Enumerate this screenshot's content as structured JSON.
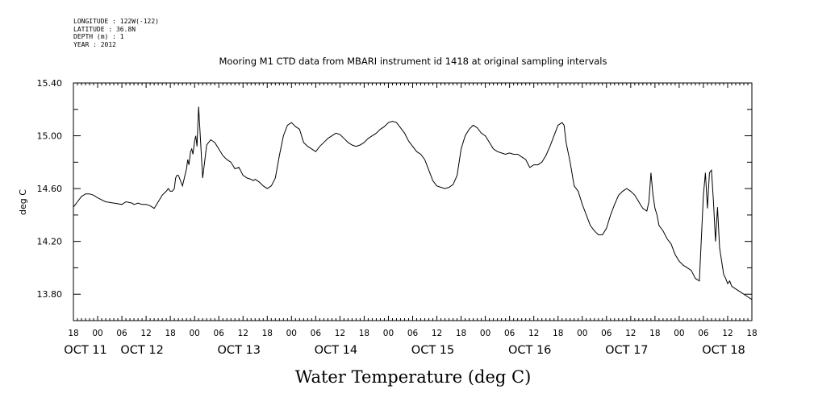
{
  "header_meta": {
    "longitude": "LONGITUDE : 122W(-122)",
    "latitude": "LATITUDE : 36.8N",
    "depth": "DEPTH (m) : 1",
    "year": "YEAR : 2012"
  },
  "chart_data": {
    "type": "line",
    "title": "Mooring M1 CTD data from MBARI instrument id 1418 at original sampling intervals",
    "xlabel": "Water Temperature (deg C)",
    "ylabel": "deg C",
    "ylim": [
      13.6,
      15.4
    ],
    "yticks": [
      13.8,
      14.2,
      14.6,
      15.0,
      15.4
    ],
    "ytick_labels": [
      "13.80",
      "14.20",
      "14.60",
      "15.00",
      "15.40"
    ],
    "x_unit": "hours since 2012-10-11 18:00",
    "xlim": [
      0,
      168
    ],
    "xticks": [
      0,
      6,
      12,
      18,
      24,
      30,
      36,
      42,
      48,
      54,
      60,
      66,
      72,
      78,
      84,
      90,
      96,
      102,
      108,
      114,
      120,
      126,
      132,
      138,
      144,
      150,
      156,
      162,
      168
    ],
    "xtick_labels": [
      "18",
      "00",
      "06",
      "12",
      "18",
      "00",
      "06",
      "12",
      "18",
      "00",
      "06",
      "12",
      "18",
      "00",
      "06",
      "12",
      "18",
      "00",
      "06",
      "12",
      "18",
      "00",
      "06",
      "12",
      "18",
      "00",
      "06",
      "12",
      "18"
    ],
    "day_labels": [
      {
        "label": "OCT 11",
        "x": 3
      },
      {
        "label": "OCT 12",
        "x": 17
      },
      {
        "label": "OCT 13",
        "x": 41
      },
      {
        "label": "OCT 14",
        "x": 65
      },
      {
        "label": "OCT 15",
        "x": 89
      },
      {
        "label": "OCT 16",
        "x": 113
      },
      {
        "label": "OCT 17",
        "x": 137
      },
      {
        "label": "OCT 18",
        "x": 161
      }
    ],
    "grid": false,
    "series": [
      {
        "x": [
          0,
          1,
          2,
          3,
          4,
          5,
          6,
          8,
          10,
          12,
          13,
          14.5,
          15,
          16,
          17,
          18,
          19,
          20,
          21,
          22,
          23,
          23.5,
          24,
          24.5,
          25,
          25.3,
          25.6,
          26,
          27,
          28,
          28.3,
          28.6,
          29,
          29.3,
          29.6,
          30,
          30.3,
          30.6,
          31,
          32,
          33,
          34,
          35,
          36,
          37,
          38,
          39,
          40,
          41,
          42,
          43,
          44,
          44.5,
          45,
          46,
          47,
          48,
          49,
          50,
          51,
          52,
          53,
          54,
          55,
          56,
          57,
          58,
          59,
          60,
          61,
          62,
          63,
          64,
          65,
          66,
          67,
          68,
          69,
          70,
          71,
          72,
          73,
          74,
          75,
          76,
          77,
          78,
          79,
          80,
          81,
          82,
          83,
          84,
          85,
          86,
          87,
          88,
          89,
          90,
          91,
          92,
          93,
          94,
          95,
          96,
          97,
          98,
          99,
          100,
          101,
          102,
          103,
          104,
          105,
          106,
          107,
          108,
          109,
          110,
          111,
          112,
          113,
          114,
          115,
          116,
          117,
          118,
          119,
          120,
          121,
          121.5,
          122,
          123,
          124,
          125,
          126,
          127,
          128,
          129,
          130,
          131,
          132,
          133,
          134,
          135,
          136,
          137,
          138,
          139,
          140,
          141,
          142,
          142.5,
          143,
          143.5,
          144,
          144.5,
          145,
          146,
          147,
          148,
          149,
          150,
          151,
          152,
          153,
          154,
          155,
          156,
          156.5,
          157,
          157.5,
          158,
          158.5,
          159,
          159.5,
          160,
          160.5,
          161,
          161.5,
          162,
          162.5,
          163,
          164,
          165,
          166,
          167,
          168
        ],
        "values": [
          14.46,
          14.5,
          14.54,
          14.56,
          14.56,
          14.55,
          14.53,
          14.5,
          14.49,
          14.48,
          14.5,
          14.49,
          14.48,
          14.49,
          14.48,
          14.48,
          14.47,
          14.45,
          14.5,
          14.55,
          14.58,
          14.6,
          14.58,
          14.58,
          14.6,
          14.68,
          14.7,
          14.7,
          14.62,
          14.75,
          14.82,
          14.78,
          14.88,
          14.9,
          14.86,
          14.96,
          15.0,
          14.92,
          15.22,
          14.68,
          14.93,
          14.97,
          14.95,
          14.9,
          14.85,
          14.82,
          14.8,
          14.75,
          14.76,
          14.7,
          14.68,
          14.67,
          14.66,
          14.67,
          14.65,
          14.62,
          14.6,
          14.62,
          14.68,
          14.85,
          15.0,
          15.08,
          15.1,
          15.07,
          15.05,
          14.95,
          14.92,
          14.9,
          14.88,
          14.92,
          14.95,
          14.98,
          15.0,
          15.02,
          15.01,
          14.98,
          14.95,
          14.93,
          14.92,
          14.93,
          14.95,
          14.98,
          15.0,
          15.02,
          15.05,
          15.07,
          15.1,
          15.11,
          15.1,
          15.06,
          15.02,
          14.96,
          14.92,
          14.88,
          14.86,
          14.82,
          14.74,
          14.66,
          14.62,
          14.61,
          14.6,
          14.61,
          14.63,
          14.7,
          14.9,
          15.0,
          15.05,
          15.08,
          15.06,
          15.02,
          15.0,
          14.95,
          14.9,
          14.88,
          14.87,
          14.86,
          14.87,
          14.86,
          14.86,
          14.84,
          14.82,
          14.76,
          14.78,
          14.78,
          14.8,
          14.85,
          14.92,
          15.0,
          15.08,
          15.1,
          15.08,
          14.95,
          14.8,
          14.62,
          14.58,
          14.48,
          14.4,
          14.32,
          14.28,
          14.25,
          14.25,
          14.3,
          14.4,
          14.48,
          14.55,
          14.58,
          14.6,
          14.58,
          14.55,
          14.5,
          14.45,
          14.43,
          14.5,
          14.72,
          14.55,
          14.45,
          14.4,
          14.32,
          14.28,
          14.22,
          14.18,
          14.1,
          14.05,
          14.02,
          14.0,
          13.98,
          13.92,
          13.9,
          14.55,
          14.72,
          14.45,
          14.72,
          14.74,
          14.5,
          14.2,
          14.46,
          14.15,
          14.05,
          13.95,
          13.92,
          13.88,
          13.9,
          13.86,
          13.84,
          13.82,
          13.8,
          13.78,
          13.76
        ]
      }
    ]
  }
}
